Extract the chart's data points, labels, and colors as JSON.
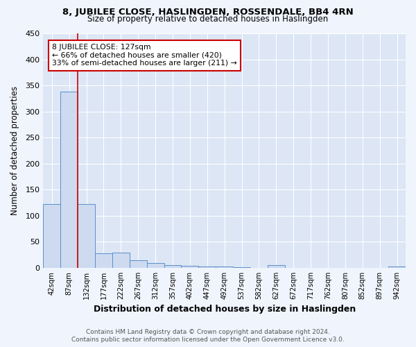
{
  "title": "8, JUBILEE CLOSE, HASLINGDEN, ROSSENDALE, BB4 4RN",
  "subtitle": "Size of property relative to detached houses in Haslingden",
  "xlabel": "Distribution of detached houses by size in Haslingden",
  "ylabel": "Number of detached properties",
  "footer_line1": "Contains HM Land Registry data © Crown copyright and database right 2024.",
  "footer_line2": "Contains public sector information licensed under the Open Government Licence v3.0.",
  "bar_labels": [
    "42sqm",
    "87sqm",
    "132sqm",
    "177sqm",
    "222sqm",
    "267sqm",
    "312sqm",
    "357sqm",
    "402sqm",
    "447sqm",
    "492sqm",
    "537sqm",
    "582sqm",
    "627sqm",
    "672sqm",
    "717sqm",
    "762sqm",
    "807sqm",
    "852sqm",
    "897sqm",
    "942sqm"
  ],
  "bar_values": [
    122,
    338,
    123,
    28,
    29,
    15,
    9,
    5,
    4,
    2,
    3,
    1,
    0,
    5,
    0,
    0,
    0,
    0,
    0,
    0,
    3
  ],
  "bar_color": "#cddaf0",
  "bar_edge_color": "#5b8fc9",
  "background_color": "#dce6f5",
  "figure_color": "#f0f4fc",
  "grid_color": "#ffffff",
  "annotation_text": "8 JUBILEE CLOSE: 127sqm\n← 66% of detached houses are smaller (420)\n33% of semi-detached houses are larger (211) →",
  "annotation_box_edge_color": "#cc0000",
  "red_line_color": "#cc0000",
  "ylim": [
    0,
    450
  ],
  "yticks": [
    0,
    50,
    100,
    150,
    200,
    250,
    300,
    350,
    400,
    450
  ]
}
